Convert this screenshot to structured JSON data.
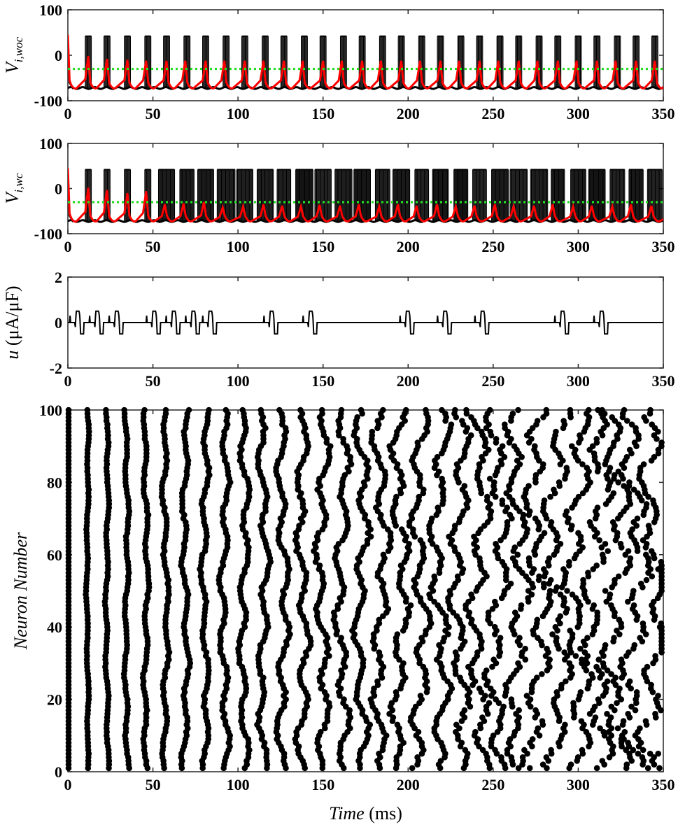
{
  "chart_data": [
    {
      "id": "vwoc",
      "type": "line",
      "ylabel": "V",
      "ylabel_sub": "i,woc",
      "xlim": [
        0,
        350
      ],
      "ylim": [
        -100,
        100
      ],
      "xticks": [
        0,
        50,
        100,
        150,
        200,
        250,
        300,
        350
      ],
      "yticks": [
        -100,
        0,
        100
      ],
      "threshold": -30,
      "spike_peak": 42,
      "rest": -72,
      "black_spike_times": [
        12,
        23,
        35,
        47,
        58,
        70,
        81,
        93,
        104,
        116,
        127,
        139,
        150,
        162,
        173,
        185,
        196,
        208,
        219,
        231,
        242,
        254,
        265,
        277,
        288,
        300,
        311,
        323,
        334,
        345
      ],
      "red_peak_times": [
        12,
        23,
        35,
        46,
        58,
        69,
        81,
        92,
        104,
        115,
        127,
        138,
        150,
        161,
        173,
        184,
        196,
        207,
        219,
        230,
        242,
        253,
        265,
        276,
        288,
        299,
        311,
        322,
        334,
        345
      ],
      "red_peak_values": [
        -2,
        -8,
        -10,
        -12,
        -12,
        -12,
        -12,
        -12,
        -12,
        -12,
        -12,
        -12,
        -12,
        -12,
        -12,
        -12,
        -12,
        -12,
        -12,
        -12,
        -12,
        -12,
        -12,
        -12,
        -12,
        -12,
        -12,
        -12,
        -12,
        -12
      ],
      "series": [
        {
          "color": "#000000"
        },
        {
          "color": "#ff0000"
        },
        {
          "color": "#22dd22"
        }
      ]
    },
    {
      "id": "vwc",
      "type": "line",
      "ylabel": "V",
      "ylabel_sub": "i,wc",
      "xlim": [
        0,
        350
      ],
      "ylim": [
        -100,
        100
      ],
      "xticks": [
        0,
        50,
        100,
        150,
        200,
        250,
        300,
        350
      ],
      "yticks": [
        -100,
        0,
        100
      ],
      "threshold": -30,
      "spike_peak": 42,
      "rest": -72,
      "black_spike_times": [
        12,
        23,
        35,
        47,
        58,
        70,
        81,
        93,
        104,
        116,
        127,
        139,
        150,
        162,
        173,
        185,
        196,
        208,
        219,
        231,
        242,
        254,
        265,
        277,
        288,
        300,
        311,
        323,
        334,
        345
      ],
      "red_peak_times": [
        12,
        23,
        35,
        46,
        57,
        68,
        80,
        91,
        103,
        115,
        126,
        137,
        148,
        160,
        171,
        183,
        194,
        205,
        217,
        228,
        239,
        251,
        262,
        274,
        285,
        297,
        308,
        320,
        331,
        343
      ],
      "red_peak_values": [
        2,
        -3,
        -10,
        -6,
        -35,
        -33,
        -30,
        -42,
        -40,
        -35,
        -38,
        -40,
        -36,
        -38,
        -35,
        -40,
        -35,
        -38,
        -35,
        -40,
        -38,
        -35,
        -40,
        -38,
        -35,
        -40,
        -38,
        -40,
        -35,
        -38
      ],
      "series": [
        {
          "color": "#000000"
        },
        {
          "color": "#ff0000"
        },
        {
          "color": "#22dd22"
        }
      ]
    },
    {
      "id": "control",
      "type": "line",
      "ylabel_var": "u",
      "ylabel_unit": "(μA/μF)",
      "xlim": [
        0,
        350
      ],
      "ylim": [
        -2,
        2
      ],
      "xticks": [
        0,
        50,
        100,
        150,
        200,
        250,
        300,
        350
      ],
      "yticks": [
        -2,
        0,
        2
      ],
      "pulse_amp_pos": 0.5,
      "pulse_amp_neg": -0.5,
      "pulse_groups": [
        {
          "start": 1,
          "count": 3
        },
        {
          "start": 46,
          "count": 3
        },
        {
          "start": 79,
          "count": 1
        },
        {
          "start": 115,
          "count": 1
        },
        {
          "start": 138,
          "count": 1
        },
        {
          "start": 195,
          "count": 1
        },
        {
          "start": 217,
          "count": 1
        },
        {
          "start": 239,
          "count": 1
        },
        {
          "start": 286,
          "count": 1
        },
        {
          "start": 309,
          "count": 1
        }
      ],
      "series": [
        {
          "color": "#000000"
        }
      ]
    },
    {
      "id": "raster",
      "type": "scatter",
      "ylabel": "Neuron Number",
      "xlabel_var": "Time",
      "xlabel_unit": "(ms)",
      "xlim": [
        0,
        350
      ],
      "ylim": [
        0,
        100
      ],
      "xticks": [
        0,
        50,
        100,
        150,
        200,
        250,
        300,
        350
      ],
      "yticks": [
        0,
        20,
        40,
        60,
        80,
        100
      ],
      "n_neurons": 100,
      "initial_spike_time": 0,
      "column_times": [
        11.5,
        23,
        34.5,
        46,
        57.5,
        69,
        80.5,
        92,
        103.5,
        115,
        126.5,
        138,
        149.5,
        161,
        172.5,
        184,
        195.5,
        207,
        218.5,
        230,
        241.5,
        253,
        264.5,
        276,
        287.5,
        299,
        310.5,
        322,
        333.5,
        345
      ],
      "isolated_points": [
        [
          347,
          56
        ],
        [
          348,
          40
        ],
        [
          347,
          5
        ]
      ],
      "series": [
        {
          "color": "#000000"
        }
      ]
    }
  ]
}
